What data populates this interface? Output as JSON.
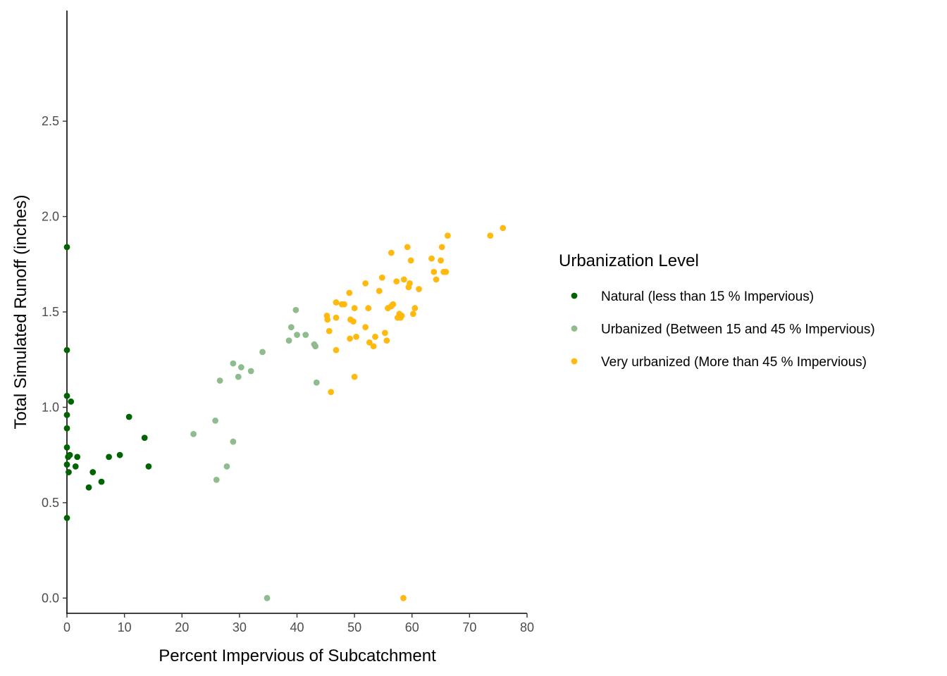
{
  "chart_data": {
    "type": "scatter",
    "xlabel": "Percent Impervious of Subcatchment",
    "ylabel": "Total Simulated Runoff (inches)",
    "xlim": [
      0,
      80
    ],
    "ylim": [
      -0.08,
      3.08
    ],
    "x_ticks": [
      "0",
      "10",
      "20",
      "30",
      "40",
      "50",
      "60",
      "70",
      "80"
    ],
    "y_ticks": [
      "0.0",
      "0.5",
      "1.0",
      "1.5",
      "2.0",
      "2.5"
    ],
    "grid": false,
    "legend": {
      "title": "Urbanization Level",
      "position": "right"
    },
    "series": [
      {
        "name": "Natural (less than 15 % Impervious)",
        "color": "#006400",
        "points": [
          [
            0,
            1.84
          ],
          [
            0,
            1.3
          ],
          [
            0,
            1.06
          ],
          [
            0,
            0.96
          ],
          [
            0,
            0.89
          ],
          [
            0,
            0.79
          ],
          [
            0,
            0.7
          ],
          [
            0,
            0.42
          ],
          [
            0.2,
            0.74
          ],
          [
            0.3,
            0.66
          ],
          [
            0.5,
            0.75
          ],
          [
            0.7,
            1.03
          ],
          [
            1.5,
            0.69
          ],
          [
            1.8,
            0.74
          ],
          [
            3.8,
            0.58
          ],
          [
            4.5,
            0.66
          ],
          [
            6.0,
            0.61
          ],
          [
            7.3,
            0.74
          ],
          [
            9.2,
            0.75
          ],
          [
            10.8,
            0.95
          ],
          [
            13.5,
            0.84
          ],
          [
            14.2,
            0.69
          ]
        ]
      },
      {
        "name": "Urbanized (Between 15 and 45 % Impervious)",
        "color": "#8FBC8F",
        "points": [
          [
            22.0,
            0.86
          ],
          [
            25.8,
            0.93
          ],
          [
            26.0,
            0.62
          ],
          [
            26.6,
            1.14
          ],
          [
            27.8,
            0.69
          ],
          [
            28.9,
            1.23
          ],
          [
            28.9,
            0.82
          ],
          [
            29.8,
            1.16
          ],
          [
            30.3,
            1.21
          ],
          [
            32.0,
            1.19
          ],
          [
            34.0,
            1.29
          ],
          [
            34.8,
            0.0
          ],
          [
            38.6,
            1.35
          ],
          [
            39.0,
            1.42
          ],
          [
            39.8,
            1.51
          ],
          [
            40.0,
            1.38
          ],
          [
            41.5,
            1.38
          ],
          [
            43.0,
            1.33
          ],
          [
            43.2,
            1.32
          ],
          [
            43.4,
            1.13
          ]
        ]
      },
      {
        "name": "Very urbanized (More than 45 % Impervious)",
        "color": "#FFB90F",
        "points": [
          [
            45.2,
            1.48
          ],
          [
            45.3,
            1.46
          ],
          [
            45.6,
            1.4
          ],
          [
            45.9,
            1.08
          ],
          [
            46.8,
            1.55
          ],
          [
            46.8,
            1.47
          ],
          [
            46.8,
            1.3
          ],
          [
            47.8,
            1.54
          ],
          [
            48.2,
            1.54
          ],
          [
            49.1,
            1.6
          ],
          [
            49.2,
            1.36
          ],
          [
            49.3,
            1.46
          ],
          [
            49.8,
            1.45
          ],
          [
            50.0,
            1.52
          ],
          [
            50.0,
            1.16
          ],
          [
            50.3,
            1.37
          ],
          [
            51.9,
            1.65
          ],
          [
            51.9,
            1.42
          ],
          [
            52.4,
            1.52
          ],
          [
            52.6,
            1.34
          ],
          [
            53.3,
            1.32
          ],
          [
            53.6,
            1.37
          ],
          [
            54.3,
            1.61
          ],
          [
            54.8,
            1.68
          ],
          [
            55.3,
            1.39
          ],
          [
            55.6,
            1.35
          ],
          [
            55.8,
            1.52
          ],
          [
            56.4,
            1.81
          ],
          [
            56.4,
            1.53
          ],
          [
            56.7,
            1.54
          ],
          [
            57.3,
            1.66
          ],
          [
            57.5,
            1.47
          ],
          [
            57.8,
            1.49
          ],
          [
            58.0,
            1.47
          ],
          [
            58.2,
            1.48
          ],
          [
            58.5,
            0.0
          ],
          [
            58.6,
            1.67
          ],
          [
            59.2,
            1.84
          ],
          [
            59.4,
            1.63
          ],
          [
            59.6,
            1.65
          ],
          [
            59.8,
            1.77
          ],
          [
            60.2,
            1.49
          ],
          [
            60.5,
            1.52
          ],
          [
            61.2,
            1.62
          ],
          [
            63.4,
            1.78
          ],
          [
            63.8,
            1.71
          ],
          [
            64.2,
            1.67
          ],
          [
            65.0,
            1.77
          ],
          [
            65.2,
            1.84
          ],
          [
            65.5,
            1.71
          ],
          [
            65.9,
            1.71
          ],
          [
            66.2,
            1.9
          ],
          [
            73.6,
            1.9
          ],
          [
            75.8,
            1.94
          ]
        ]
      }
    ]
  }
}
